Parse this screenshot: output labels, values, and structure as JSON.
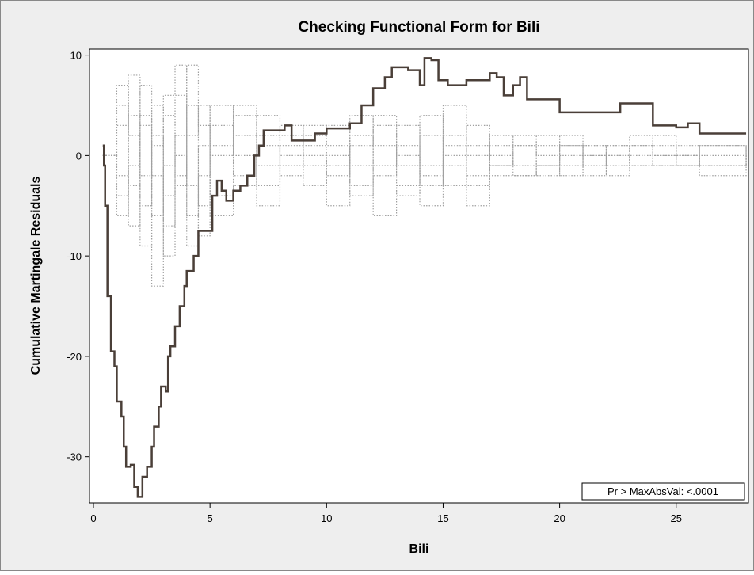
{
  "chart_data": {
    "type": "line",
    "title": "Checking Functional Form for Bili",
    "x_label": "Bili",
    "y_label": "Cumulative Martingale Residuals",
    "annotation": "Pr > MaxAbsVal: <.0001",
    "xlim": [
      -0.17,
      28.1
    ],
    "ylim": [
      -34.6,
      10.6
    ],
    "xticks": [
      0,
      5,
      10,
      15,
      20,
      25
    ],
    "yticks": [
      10,
      0,
      -10,
      -20,
      -30
    ],
    "step": true,
    "x": [
      0.4,
      1,
      1.5,
      2,
      2.5,
      3,
      3.5,
      4,
      4.5,
      5,
      6,
      7,
      8,
      9,
      10,
      11,
      12,
      13,
      14,
      15,
      16,
      17,
      18,
      19,
      20,
      21,
      22,
      23,
      24,
      25,
      26,
      28
    ],
    "series": [
      {
        "color": "#a0a0a0",
        "dash": true,
        "values": [
          0,
          5,
          -3,
          7,
          -6,
          4,
          -2,
          9,
          3,
          -4,
          2,
          -1,
          1,
          0,
          -2,
          1,
          3,
          -1,
          2,
          -3,
          0,
          2,
          1,
          -1,
          0,
          1,
          -1,
          0,
          1,
          0,
          -1,
          0
        ]
      },
      {
        "color": "#a0a0a0",
        "dash": true,
        "values": [
          0,
          -6,
          4,
          -9,
          2,
          -4,
          6,
          -3,
          -8,
          3,
          -2,
          4,
          2,
          -3,
          0,
          -4,
          -2,
          3,
          -3,
          2,
          -2,
          -1,
          1,
          0,
          -1,
          0,
          1,
          -1,
          0,
          1,
          0,
          -1
        ]
      },
      {
        "color": "#a0a0a0",
        "dash": true,
        "values": [
          0,
          3,
          8,
          -2,
          5,
          -10,
          -3,
          5,
          -5,
          0,
          4,
          -5,
          -1,
          2,
          3,
          -1,
          -6,
          -3,
          4,
          1,
          3,
          -2,
          -2,
          2,
          1,
          -1,
          0,
          1,
          -1,
          -1,
          1,
          0
        ]
      },
      {
        "color": "#a0a0a0",
        "dash": true,
        "values": [
          0,
          -2,
          -7,
          3,
          -13,
          -1,
          2,
          -6,
          1,
          -6,
          -3,
          1,
          -2,
          -1,
          -5,
          2,
          1,
          -4,
          -1,
          5,
          -5,
          1,
          -1,
          -2,
          2,
          0,
          -2,
          2,
          0,
          0,
          -1,
          1
        ]
      },
      {
        "color": "#a0a0a0",
        "dash": true,
        "values": [
          0,
          7,
          2,
          -5,
          1,
          6,
          9,
          2,
          5,
          1,
          5,
          2,
          0,
          3,
          1,
          -3,
          4,
          0,
          -2,
          -1,
          1,
          -1,
          2,
          1,
          -2,
          1,
          0,
          -1,
          2,
          -1,
          1,
          -1
        ]
      },
      {
        "color": "#a0a0a0",
        "dash": true,
        "values": [
          0,
          -4,
          -1,
          4,
          -2,
          -7,
          0,
          -9,
          -2,
          5,
          0,
          -3,
          3,
          1,
          -1,
          4,
          -1,
          1,
          -5,
          0,
          -3,
          0,
          -2,
          -1,
          1,
          -2,
          1,
          1,
          -1,
          0,
          -2,
          0
        ]
      },
      {
        "color": "#4a3f38",
        "dash": false,
        "x": [
          0.4,
          0.45,
          0.5,
          0.6,
          0.75,
          0.9,
          1.0,
          1.2,
          1.3,
          1.4,
          1.6,
          1.75,
          1.9,
          2.1,
          2.3,
          2.5,
          2.6,
          2.8,
          2.9,
          3.1,
          3.2,
          3.3,
          3.5,
          3.7,
          3.9,
          4.0,
          4.3,
          4.5,
          5.1,
          5.3,
          5.5,
          5.7,
          6.0,
          6.3,
          6.6,
          6.9,
          7.1,
          7.3,
          8.2,
          8.5,
          9.5,
          10.0,
          11.0,
          11.5,
          12.0,
          12.5,
          12.8,
          13.5,
          14.0,
          14.2,
          14.5,
          14.8,
          15.2,
          16.0,
          17.0,
          17.3,
          17.6,
          18.0,
          18.3,
          18.6,
          20.0,
          22.6,
          24.0,
          25.0,
          25.5,
          26.0,
          28.0
        ],
        "values": [
          1,
          -1,
          -5,
          -14,
          -19.5,
          -21,
          -24.5,
          -26,
          -29,
          -31,
          -30.8,
          -33,
          -34,
          -32,
          -31,
          -29,
          -27,
          -25,
          -23,
          -23.5,
          -20,
          -19,
          -17,
          -15,
          -13,
          -11.5,
          -10,
          -7.5,
          -4,
          -2.5,
          -3.5,
          -4.5,
          -3.5,
          -3,
          -2,
          0,
          1,
          2.5,
          3,
          1.5,
          2.2,
          2.7,
          3.2,
          5,
          6.7,
          7.8,
          8.8,
          8.5,
          7,
          9.7,
          9.5,
          7.5,
          7,
          7.5,
          8.2,
          7.8,
          6,
          7,
          7.8,
          5.6,
          4.3,
          5.2,
          3,
          2.8,
          3.2,
          2.2,
          2.2
        ]
      }
    ]
  }
}
